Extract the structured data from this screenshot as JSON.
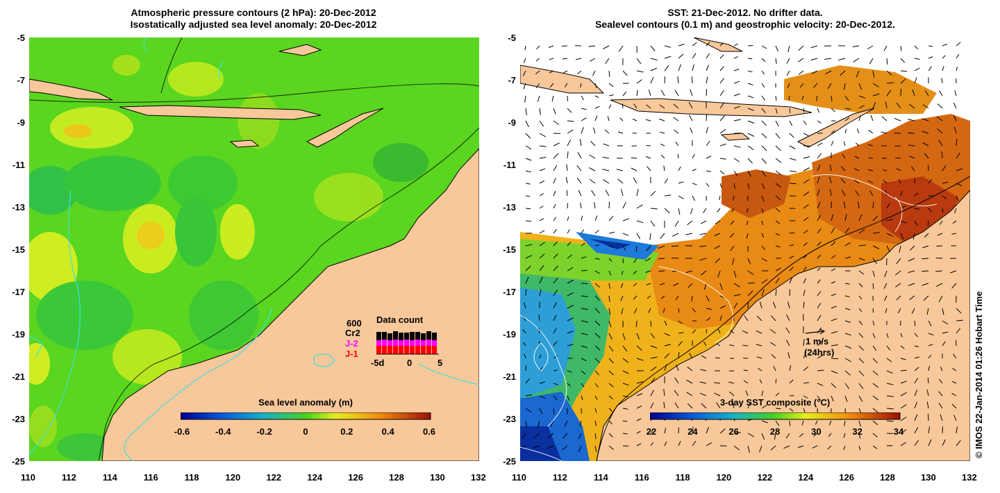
{
  "left_panel": {
    "title_line1": "Atmospheric pressure contours (2 hPa): 20-Dec-2012",
    "title_line2": "Isostatically adjusted sea level anomaly: 20-Dec-2012",
    "colorbar": {
      "title": "Sea level anomaly (m)",
      "ticks": [
        "-0.6",
        "-0.4",
        "-0.2",
        "0",
        "0.2",
        "0.4",
        "0.6"
      ]
    },
    "data_count": {
      "title": "Data count",
      "max_label": "600",
      "series": [
        "Cr2",
        "J-2",
        "J-1"
      ],
      "series_colors": [
        "#000000",
        "#ff00ff",
        "#ff0000"
      ],
      "x_ticks": [
        "-5d",
        "0",
        "5"
      ]
    }
  },
  "right_panel": {
    "title_line1": "SST: 21-Dec-2012. No drifter data.",
    "title_line2": "Sealevel contours (0.1 m) and geostrophic velocity: 20-Dec-2012.",
    "colorbar": {
      "title": "3-day SST composite (°C)",
      "ticks": [
        "22",
        "24",
        "26",
        "28",
        "30",
        "32",
        "34"
      ]
    },
    "velocity_key": {
      "label": "1 m/s",
      "sublabel": "(24hrs)"
    }
  },
  "axes": {
    "x_ticks": [
      "110",
      "112",
      "114",
      "116",
      "118",
      "120",
      "122",
      "124",
      "126",
      "128",
      "130",
      "132"
    ],
    "y_ticks": [
      "-5",
      "-7",
      "-9",
      "-11",
      "-13",
      "-15",
      "-17",
      "-19",
      "-21",
      "-23",
      "-25"
    ],
    "lon_range": [
      110,
      132
    ],
    "lat_range": [
      -25,
      -5
    ]
  },
  "credit": "© IMOS 22-Jan-2014 01:26 Hobart Time",
  "colors": {
    "land": "#f8c89a",
    "sla_base": "#55d81f",
    "sst_warm": "#e07a10",
    "sst_cool": "#2f9fd8"
  }
}
